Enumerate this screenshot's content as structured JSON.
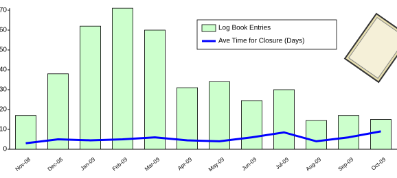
{
  "chart_data": {
    "type": "bar",
    "categories": [
      "Nov-08",
      "Dec-08",
      "Jan-09",
      "Feb-09",
      "Mar-09",
      "Apr-09",
      "May-09",
      "Jun-09",
      "Jul-09",
      "Aug-09",
      "Sep-09",
      "Oct-09"
    ],
    "series": [
      {
        "name": "Log Book Entries",
        "type": "bar",
        "color": "#ccffcc",
        "values": [
          17,
          38,
          62,
          71,
          60,
          31,
          34,
          24.5,
          30,
          14.5,
          17,
          15
        ]
      },
      {
        "name": "Ave Time for Closure (Days)",
        "type": "line",
        "color": "#0000ff",
        "values": [
          3,
          5,
          4.5,
          5,
          6,
          4.5,
          4,
          6,
          8.5,
          4,
          6,
          9
        ]
      }
    ],
    "ylim": [
      0,
      70
    ],
    "yticks": [
      0,
      10,
      20,
      30,
      40,
      50,
      60,
      70
    ]
  }
}
